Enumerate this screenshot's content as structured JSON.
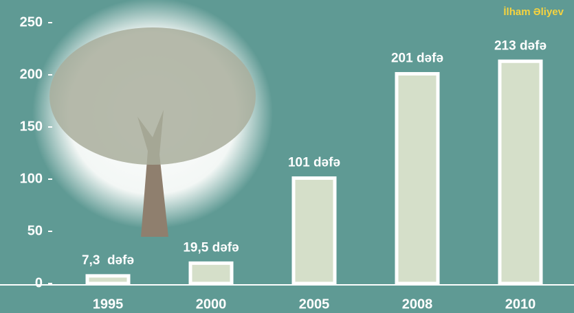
{
  "chart_data": {
    "type": "bar",
    "subtitle": "İlham Əliyev",
    "categories": [
      "1995",
      "2000",
      "2005",
      "2008",
      "2010"
    ],
    "values": [
      7.3,
      19.5,
      101,
      201,
      213
    ],
    "value_labels": [
      "7,3  dəfə",
      "19,5 dəfə",
      "101 dəfə",
      "201 dəfə",
      "213 dəfə"
    ],
    "color": "#d5dfc9",
    "ylim": [
      0,
      250
    ],
    "yticks": [
      0,
      50,
      100,
      150,
      200,
      250
    ]
  }
}
